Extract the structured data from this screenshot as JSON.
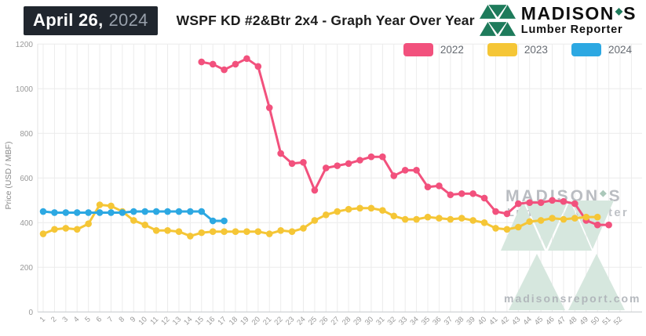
{
  "header": {
    "date": {
      "month_day": "April 26,",
      "year": "2024"
    },
    "title": "WSPF KD #2&Btr 2x4 - Graph Year Over Year"
  },
  "brand": {
    "word": "MADISON",
    "leaf_glyph": "◆",
    "suffix": "S",
    "tagline": "Lumber Reporter",
    "green": "#1e7b5b"
  },
  "watermark": {
    "word": "MADISON",
    "leaf_glyph": "◆",
    "suffix": "S",
    "line2": "Lumber Reporter",
    "url": "madisonsreport.com",
    "text_color": "#aeb2b8",
    "triangle_color": "#d6e7de"
  },
  "colors": {
    "badge_bg": "#20262e",
    "grid": "#ececec",
    "baseline": "#c4c7ca",
    "axis_text": "#999999"
  },
  "chart_data": {
    "type": "line",
    "title": "WSPF KD #2&Btr 2x4 - Graph Year Over Year",
    "xlabel": "",
    "ylabel": "Price (USD / MBF)",
    "x_unit": "week of year",
    "x_range": [
      1,
      52
    ],
    "ylim": [
      0,
      1200
    ],
    "y_ticks": [
      0,
      200,
      400,
      600,
      800,
      1000,
      1200
    ],
    "grid": true,
    "legend_position": "top-right",
    "series": [
      {
        "name": "2022",
        "color": "#f2517d",
        "start_week": 15,
        "values": [
          1120,
          1110,
          1085,
          1110,
          1135,
          1100,
          915,
          710,
          665,
          670,
          545,
          645,
          655,
          665,
          680,
          695,
          695,
          610,
          635,
          635,
          560,
          565,
          525,
          530,
          530,
          510,
          450,
          440,
          485,
          490,
          490,
          500,
          495,
          485,
          410,
          390,
          390
        ]
      },
      {
        "name": "2023",
        "color": "#f5c636",
        "start_week": 1,
        "values": [
          350,
          370,
          375,
          370,
          395,
          480,
          475,
          450,
          410,
          390,
          365,
          365,
          360,
          340,
          355,
          360,
          360,
          360,
          360,
          360,
          350,
          365,
          360,
          375,
          410,
          435,
          450,
          460,
          465,
          465,
          455,
          430,
          415,
          415,
          425,
          420,
          415,
          420,
          410,
          400,
          375,
          370,
          380,
          405,
          410,
          420,
          415,
          420,
          425,
          425
        ]
      },
      {
        "name": "2024",
        "color": "#2ca8e2",
        "start_week": 1,
        "values": [
          450,
          445,
          445,
          445,
          445,
          445,
          445,
          445,
          450,
          450,
          450,
          450,
          450,
          450,
          450,
          408,
          408
        ]
      }
    ]
  }
}
